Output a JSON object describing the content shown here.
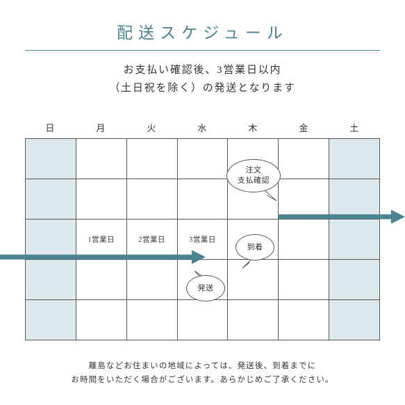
{
  "title": {
    "text": "配送スケジュール",
    "color": "#4b8391",
    "fontsize": 23,
    "underline_color": "#4b8391"
  },
  "subtitle": {
    "line1": "お支払い確認後、3営業日以内",
    "line2": "（土日祝を除く）の発送となります",
    "color": "#333333",
    "fontsize": 15
  },
  "calendar": {
    "days": [
      "日",
      "月",
      "火",
      "水",
      "木",
      "金",
      "土"
    ],
    "rows": 5,
    "cols": 7,
    "weekend_fill": "#dde9ec",
    "border_color": "#555555",
    "cells": {
      "r2c1": "1営業日",
      "r2c2": "2営業日",
      "r2c3": "3営業日"
    }
  },
  "bubbles": {
    "order": {
      "line1": "注文",
      "line2": "支払確認"
    },
    "arrive": {
      "text": "到着"
    },
    "ship": {
      "text": "発送"
    }
  },
  "arrows": {
    "color": "#4b8391",
    "stroke_width": 7
  },
  "footnote": {
    "line1": "離島などお住まいの地域によっては、発送後、到着までに",
    "line2": "お時間をいただく場合がございます。あらかじめご了承ください。"
  }
}
